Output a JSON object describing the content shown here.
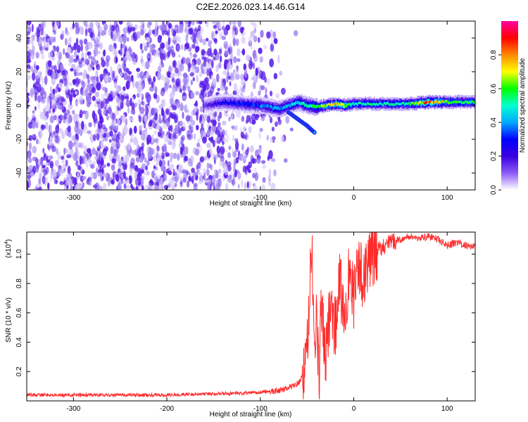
{
  "title": "C2E2.2026.023.14.46.G14",
  "chart_data": [
    {
      "type": "heatmap",
      "xlabel": "Height of straight line (km)",
      "ylabel": "Frequency (Hz)",
      "xlim": [
        -350,
        130
      ],
      "ylim": [
        -50,
        50
      ],
      "x_ticks": [
        -300,
        -200,
        -100,
        0,
        100
      ],
      "y_ticks": [
        -40,
        -20,
        0,
        20,
        40
      ],
      "colorbar": {
        "label": "Normalized spectral amplitude",
        "range": [
          0,
          1
        ],
        "ticks": [
          0.0,
          0.2,
          0.4,
          0.6,
          0.8
        ],
        "colormap": [
          "#ffffff",
          "#8b5cf6",
          "#3a00e0",
          "#0000ff",
          "#00aaff",
          "#00ffd0",
          "#00ff00",
          "#ffff00",
          "#ff8800",
          "#ff0000",
          "#ff00a0"
        ]
      },
      "noise_region": {
        "x": [
          -350,
          -80
        ],
        "amplitude": "low",
        "dominant_color": "#5a1ee8"
      },
      "ridge": {
        "x": [
          -160,
          -140,
          -120,
          -100,
          -80,
          -60,
          -50,
          -40,
          -30,
          -20,
          -10,
          0,
          20,
          40,
          60,
          80,
          100,
          120,
          130
        ],
        "freq": [
          0,
          2,
          1,
          0,
          -2,
          2,
          0,
          -1,
          0,
          1,
          0,
          1,
          1,
          1,
          1,
          2,
          2,
          2,
          2
        ],
        "amplitude": [
          0.15,
          0.25,
          0.3,
          0.35,
          0.4,
          0.45,
          0.5,
          0.6,
          0.65,
          0.75,
          0.7,
          0.5,
          0.5,
          0.5,
          0.55,
          0.85,
          0.6,
          0.55,
          0.55
        ]
      },
      "secondary_branch": {
        "x": [
          -70,
          -60,
          -50,
          -42
        ],
        "freq": [
          -4,
          -8,
          -12,
          -16
        ]
      }
    },
    {
      "type": "line",
      "xlabel": "Height of straight line (km)",
      "ylabel": "SNR (10 * v/v)",
      "y_multiplier_label": "(x10",
      "y_multiplier_exp": "4",
      "xlim": [
        -350,
        130
      ],
      "ylim": [
        0,
        1.15
      ],
      "x_ticks": [
        -300,
        -200,
        -100,
        0,
        100
      ],
      "y_ticks": [
        0.2,
        0.4,
        0.6,
        0.8,
        1.0
      ],
      "color": "#ff2a2a",
      "series": [
        {
          "x": [
            -350,
            -300,
            -250,
            -200,
            -150,
            -120,
            -100,
            -80,
            -70,
            -60,
            -55,
            -50,
            -47,
            -45,
            -42,
            -40,
            -37,
            -35,
            -30,
            -25,
            -20,
            -15,
            -10,
            -5,
            0,
            5,
            10,
            15,
            20,
            30,
            40,
            50,
            60,
            70,
            80,
            90,
            100,
            110,
            120,
            130
          ],
          "values": [
            0.04,
            0.04,
            0.04,
            0.04,
            0.05,
            0.05,
            0.06,
            0.07,
            0.09,
            0.12,
            0.16,
            0.3,
            0.8,
            1.05,
            0.35,
            0.6,
            0.1,
            0.7,
            0.25,
            0.7,
            0.5,
            0.8,
            0.6,
            0.85,
            0.7,
            0.9,
            0.85,
            0.95,
            0.98,
            1.05,
            1.08,
            1.1,
            1.12,
            1.11,
            1.12,
            1.1,
            1.06,
            1.08,
            1.06,
            1.05
          ]
        }
      ]
    }
  ]
}
